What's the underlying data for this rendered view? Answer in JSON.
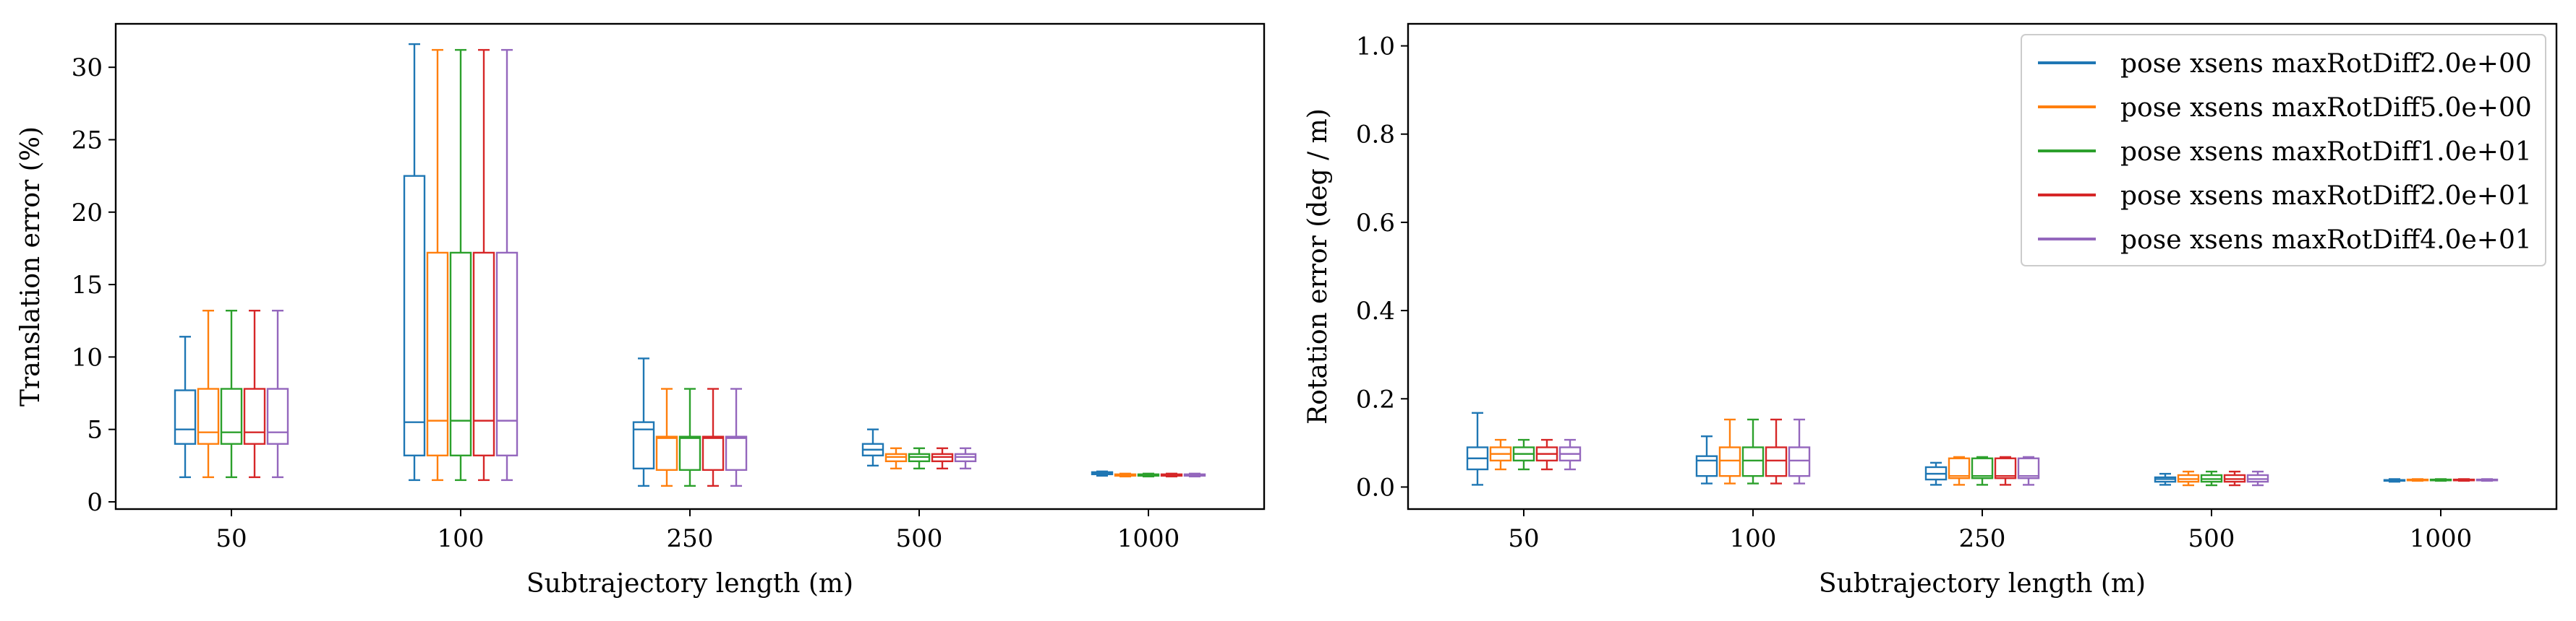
{
  "colors": [
    "#1f77b4",
    "#ff7f0e",
    "#2ca02c",
    "#d62728",
    "#9467bd"
  ],
  "legend": {
    "placement": "top-right",
    "entries": [
      "pose xsens maxRotDiff2.0e+00",
      "pose xsens maxRotDiff5.0e+00",
      "pose xsens maxRotDiff1.0e+01",
      "pose xsens maxRotDiff2.0e+01",
      "pose xsens maxRotDiff4.0e+01"
    ]
  },
  "chart_data": [
    {
      "type": "box",
      "title": "",
      "xlabel": "Subtrajectory length (m)",
      "ylabel": "Translation error (%)",
      "categories": [
        "50",
        "100",
        "250",
        "500",
        "1000"
      ],
      "ylim": [
        -0.5,
        33
      ],
      "yticks": [
        "0",
        "5",
        "10",
        "15",
        "20",
        "25",
        "30"
      ],
      "grid": false,
      "series": [
        {
          "name": "pose xsens maxRotDiff2.0e+00",
          "boxes": [
            {
              "whislo": 1.7,
              "q1": 4.0,
              "med": 5.0,
              "q3": 7.7,
              "whishi": 11.4
            },
            {
              "whislo": 1.5,
              "q1": 3.2,
              "med": 5.5,
              "q3": 22.5,
              "whishi": 31.6
            },
            {
              "whislo": 1.1,
              "q1": 2.3,
              "med": 5.0,
              "q3": 5.5,
              "whishi": 9.9
            },
            {
              "whislo": 2.5,
              "q1": 3.2,
              "med": 3.6,
              "q3": 4.0,
              "whishi": 5.0
            },
            {
              "whislo": 1.8,
              "q1": 1.9,
              "med": 2.0,
              "q3": 2.05,
              "whishi": 2.1
            }
          ]
        },
        {
          "name": "pose xsens maxRotDiff5.0e+00",
          "boxes": [
            {
              "whislo": 1.7,
              "q1": 4.0,
              "med": 4.8,
              "q3": 7.8,
              "whishi": 13.2
            },
            {
              "whislo": 1.5,
              "q1": 3.2,
              "med": 5.6,
              "q3": 17.2,
              "whishi": 31.2
            },
            {
              "whislo": 1.1,
              "q1": 2.2,
              "med": 4.4,
              "q3": 4.5,
              "whishi": 7.8
            },
            {
              "whislo": 2.3,
              "q1": 2.8,
              "med": 3.1,
              "q3": 3.3,
              "whishi": 3.7
            },
            {
              "whislo": 1.75,
              "q1": 1.8,
              "med": 1.85,
              "q3": 1.9,
              "whishi": 1.95
            }
          ]
        },
        {
          "name": "pose xsens maxRotDiff1.0e+01",
          "boxes": [
            {
              "whislo": 1.7,
              "q1": 4.0,
              "med": 4.8,
              "q3": 7.8,
              "whishi": 13.2
            },
            {
              "whislo": 1.5,
              "q1": 3.2,
              "med": 5.6,
              "q3": 17.2,
              "whishi": 31.2
            },
            {
              "whislo": 1.1,
              "q1": 2.2,
              "med": 4.4,
              "q3": 4.5,
              "whishi": 7.8
            },
            {
              "whislo": 2.3,
              "q1": 2.8,
              "med": 3.1,
              "q3": 3.3,
              "whishi": 3.7
            },
            {
              "whislo": 1.75,
              "q1": 1.8,
              "med": 1.85,
              "q3": 1.9,
              "whishi": 1.95
            }
          ]
        },
        {
          "name": "pose xsens maxRotDiff2.0e+01",
          "boxes": [
            {
              "whislo": 1.7,
              "q1": 4.0,
              "med": 4.8,
              "q3": 7.8,
              "whishi": 13.2
            },
            {
              "whislo": 1.5,
              "q1": 3.2,
              "med": 5.6,
              "q3": 17.2,
              "whishi": 31.2
            },
            {
              "whislo": 1.1,
              "q1": 2.2,
              "med": 4.4,
              "q3": 4.5,
              "whishi": 7.8
            },
            {
              "whislo": 2.3,
              "q1": 2.8,
              "med": 3.1,
              "q3": 3.3,
              "whishi": 3.7
            },
            {
              "whislo": 1.75,
              "q1": 1.8,
              "med": 1.85,
              "q3": 1.9,
              "whishi": 1.95
            }
          ]
        },
        {
          "name": "pose xsens maxRotDiff4.0e+01",
          "boxes": [
            {
              "whislo": 1.7,
              "q1": 4.0,
              "med": 4.8,
              "q3": 7.8,
              "whishi": 13.2
            },
            {
              "whislo": 1.5,
              "q1": 3.2,
              "med": 5.6,
              "q3": 17.2,
              "whishi": 31.2
            },
            {
              "whislo": 1.1,
              "q1": 2.2,
              "med": 4.4,
              "q3": 4.5,
              "whishi": 7.8
            },
            {
              "whislo": 2.3,
              "q1": 2.8,
              "med": 3.1,
              "q3": 3.3,
              "whishi": 3.7
            },
            {
              "whislo": 1.75,
              "q1": 1.8,
              "med": 1.85,
              "q3": 1.9,
              "whishi": 1.95
            }
          ]
        }
      ]
    },
    {
      "type": "box",
      "title": "",
      "xlabel": "Subtrajectory length (m)",
      "ylabel": "Rotation error (deg / m)",
      "categories": [
        "50",
        "100",
        "250",
        "500",
        "1000"
      ],
      "ylim": [
        -0.05,
        1.05
      ],
      "yticks": [
        "0.0",
        "0.2",
        "0.4",
        "0.6",
        "0.8",
        "1.0"
      ],
      "grid": false,
      "series": [
        {
          "name": "pose xsens maxRotDiff2.0e+00",
          "boxes": [
            {
              "whislo": 0.005,
              "q1": 0.04,
              "med": 0.065,
              "q3": 0.09,
              "whishi": 0.168
            },
            {
              "whislo": 0.008,
              "q1": 0.025,
              "med": 0.06,
              "q3": 0.07,
              "whishi": 0.115
            },
            {
              "whislo": 0.005,
              "q1": 0.017,
              "med": 0.03,
              "q3": 0.045,
              "whishi": 0.055
            },
            {
              "whislo": 0.005,
              "q1": 0.012,
              "med": 0.018,
              "q3": 0.022,
              "whishi": 0.03
            },
            {
              "whislo": 0.012,
              "q1": 0.014,
              "med": 0.015,
              "q3": 0.016,
              "whishi": 0.018
            }
          ]
        },
        {
          "name": "pose xsens maxRotDiff5.0e+00",
          "boxes": [
            {
              "whislo": 0.04,
              "q1": 0.06,
              "med": 0.075,
              "q3": 0.09,
              "whishi": 0.107
            },
            {
              "whislo": 0.008,
              "q1": 0.025,
              "med": 0.06,
              "q3": 0.09,
              "whishi": 0.153
            },
            {
              "whislo": 0.005,
              "q1": 0.02,
              "med": 0.025,
              "q3": 0.065,
              "whishi": 0.068
            },
            {
              "whislo": 0.004,
              "q1": 0.012,
              "med": 0.018,
              "q3": 0.027,
              "whishi": 0.035
            },
            {
              "whislo": 0.014,
              "q1": 0.015,
              "med": 0.016,
              "q3": 0.017,
              "whishi": 0.018
            }
          ]
        },
        {
          "name": "pose xsens maxRotDiff1.0e+01",
          "boxes": [
            {
              "whislo": 0.04,
              "q1": 0.06,
              "med": 0.075,
              "q3": 0.09,
              "whishi": 0.107
            },
            {
              "whislo": 0.008,
              "q1": 0.025,
              "med": 0.06,
              "q3": 0.09,
              "whishi": 0.153
            },
            {
              "whislo": 0.005,
              "q1": 0.02,
              "med": 0.025,
              "q3": 0.065,
              "whishi": 0.068
            },
            {
              "whislo": 0.004,
              "q1": 0.012,
              "med": 0.018,
              "q3": 0.027,
              "whishi": 0.035
            },
            {
              "whislo": 0.014,
              "q1": 0.015,
              "med": 0.016,
              "q3": 0.017,
              "whishi": 0.018
            }
          ]
        },
        {
          "name": "pose xsens maxRotDiff2.0e+01",
          "boxes": [
            {
              "whislo": 0.04,
              "q1": 0.06,
              "med": 0.075,
              "q3": 0.09,
              "whishi": 0.107
            },
            {
              "whislo": 0.008,
              "q1": 0.025,
              "med": 0.06,
              "q3": 0.09,
              "whishi": 0.153
            },
            {
              "whislo": 0.005,
              "q1": 0.02,
              "med": 0.025,
              "q3": 0.065,
              "whishi": 0.068
            },
            {
              "whislo": 0.004,
              "q1": 0.012,
              "med": 0.018,
              "q3": 0.027,
              "whishi": 0.035
            },
            {
              "whislo": 0.014,
              "q1": 0.015,
              "med": 0.016,
              "q3": 0.017,
              "whishi": 0.018
            }
          ]
        },
        {
          "name": "pose xsens maxRotDiff4.0e+01",
          "boxes": [
            {
              "whislo": 0.04,
              "q1": 0.06,
              "med": 0.075,
              "q3": 0.09,
              "whishi": 0.107
            },
            {
              "whislo": 0.008,
              "q1": 0.025,
              "med": 0.06,
              "q3": 0.09,
              "whishi": 0.153
            },
            {
              "whislo": 0.005,
              "q1": 0.02,
              "med": 0.025,
              "q3": 0.065,
              "whishi": 0.068
            },
            {
              "whislo": 0.004,
              "q1": 0.012,
              "med": 0.018,
              "q3": 0.027,
              "whishi": 0.035
            },
            {
              "whislo": 0.014,
              "q1": 0.015,
              "med": 0.016,
              "q3": 0.017,
              "whishi": 0.018
            }
          ]
        }
      ]
    }
  ]
}
